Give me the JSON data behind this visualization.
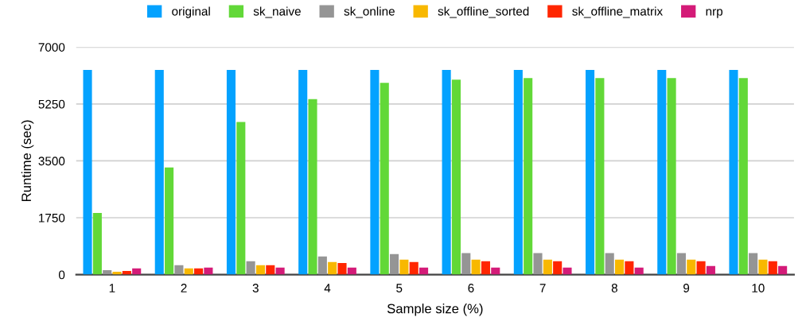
{
  "chart_data": {
    "type": "bar",
    "xlabel": "Sample size (%)",
    "ylabel": "Runtime (sec)",
    "categories": [
      "1",
      "2",
      "3",
      "4",
      "5",
      "6",
      "7",
      "8",
      "9",
      "10"
    ],
    "series": [
      {
        "name": "original",
        "color": "#04a2ff",
        "values": [
          6300,
          6300,
          6300,
          6300,
          6300,
          6300,
          6300,
          6300,
          6300,
          6300
        ]
      },
      {
        "name": "sk_naive",
        "color": "#62d838",
        "values": [
          1900,
          3300,
          4700,
          5400,
          5900,
          6000,
          6050,
          6050,
          6050,
          6050
        ]
      },
      {
        "name": "sk_online",
        "color": "#959595",
        "values": [
          140,
          290,
          410,
          560,
          630,
          660,
          660,
          660,
          660,
          660
        ]
      },
      {
        "name": "sk_offline_sorted",
        "color": "#f8b800",
        "values": [
          90,
          190,
          290,
          385,
          460,
          460,
          460,
          460,
          460,
          460
        ]
      },
      {
        "name": "sk_offline_matrix",
        "color": "#ff2600",
        "values": [
          115,
          190,
          290,
          360,
          385,
          410,
          410,
          410,
          410,
          410
        ]
      },
      {
        "name": "nrp",
        "color": "#d41b78",
        "values": [
          190,
          215,
          215,
          215,
          215,
          215,
          215,
          215,
          265,
          265
        ]
      }
    ],
    "ylim": [
      0,
      7000
    ],
    "yticks": [
      0,
      1750,
      3500,
      5250,
      7000
    ],
    "grid": "y",
    "legend": "top"
  }
}
